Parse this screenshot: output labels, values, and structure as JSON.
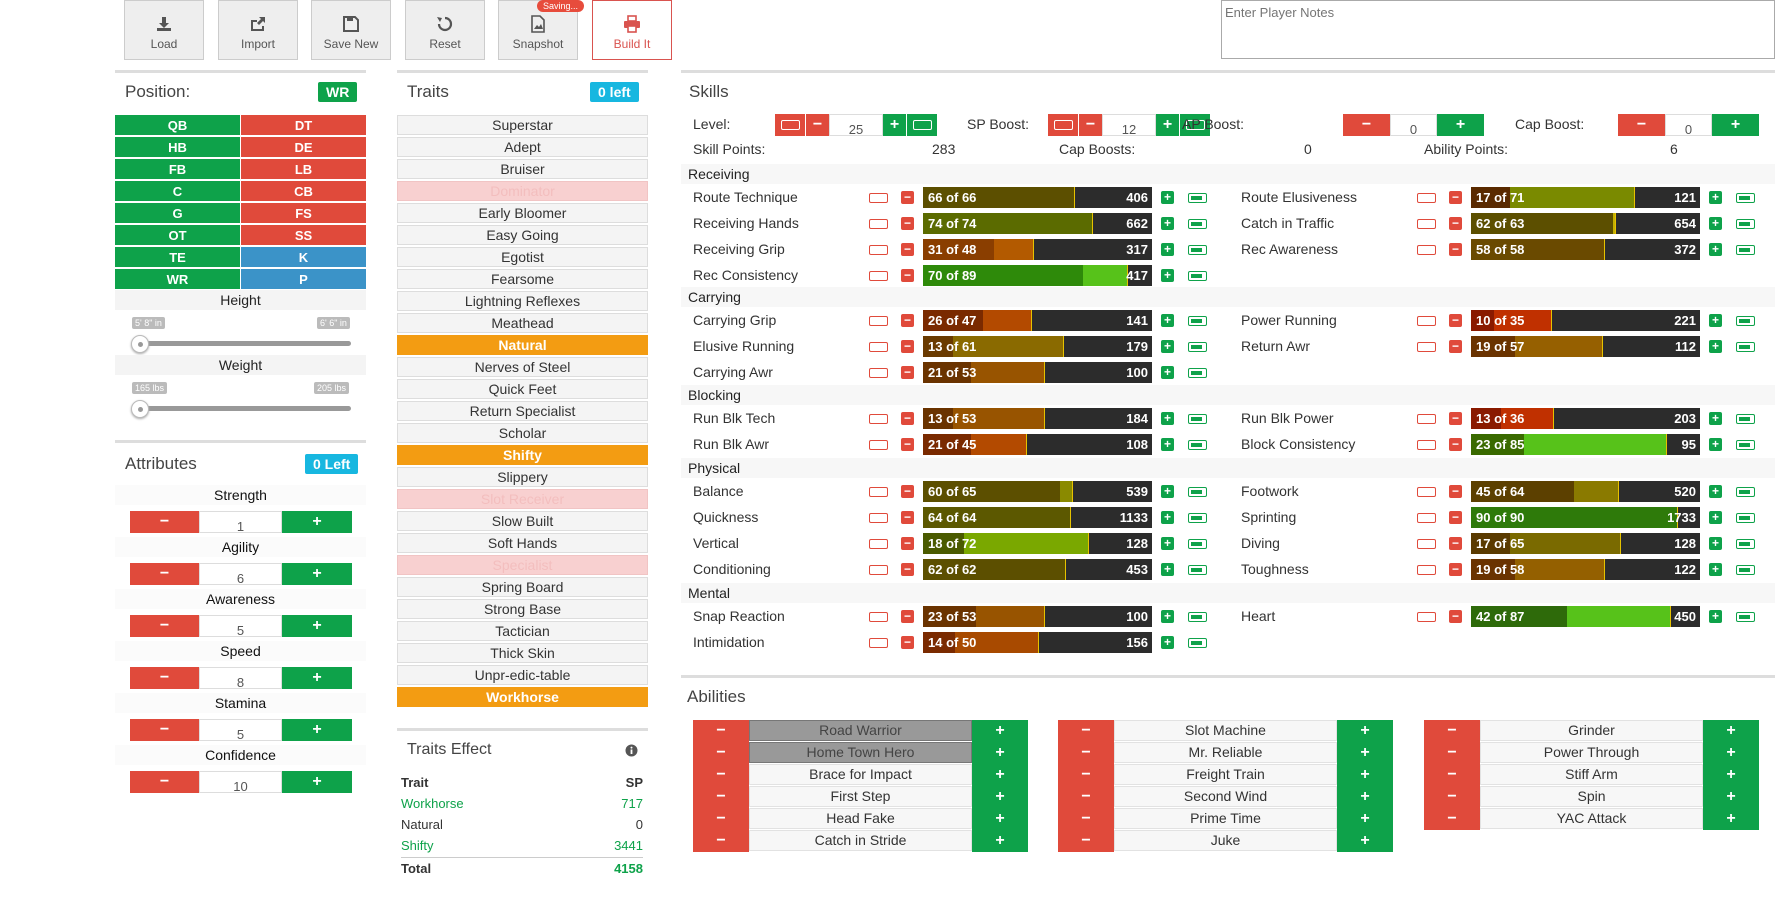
{
  "toolbar": {
    "load": "Load",
    "import": "Import",
    "save_new": "Save New",
    "reset": "Reset",
    "snapshot": "Snapshot",
    "saving_badge": "Saving...",
    "build": "Build It"
  },
  "notes": {
    "placeholder": "Enter Player Notes"
  },
  "position": {
    "title": "Position:",
    "selected": "WR",
    "left": [
      "QB",
      "HB",
      "FB",
      "C",
      "G",
      "OT",
      "TE",
      "WR"
    ],
    "right": [
      "DT",
      "DE",
      "LB",
      "CB",
      "FS",
      "SS",
      "K",
      "P"
    ]
  },
  "height": {
    "label": "Height",
    "min": "5' 8\" in",
    "max": "6' 6\" in",
    "value_fraction": 0
  },
  "weight": {
    "label": "Weight",
    "min": "165 lbs",
    "max": "205 lbs",
    "value_fraction": 0
  },
  "attributes": {
    "title": "Attributes",
    "left": "0 Left",
    "items": [
      {
        "name": "Strength",
        "value": "1"
      },
      {
        "name": "Agility",
        "value": "6"
      },
      {
        "name": "Awareness",
        "value": "5"
      },
      {
        "name": "Speed",
        "value": "8"
      },
      {
        "name": "Stamina",
        "value": "5"
      },
      {
        "name": "Confidence",
        "value": "10"
      }
    ]
  },
  "traits": {
    "title": "Traits",
    "left": "0 left",
    "items": [
      {
        "name": "Superstar",
        "state": ""
      },
      {
        "name": "Adept",
        "state": ""
      },
      {
        "name": "Bruiser",
        "state": ""
      },
      {
        "name": "Dominator",
        "state": "dis"
      },
      {
        "name": "Early Bloomer",
        "state": ""
      },
      {
        "name": "Easy Going",
        "state": ""
      },
      {
        "name": "Egotist",
        "state": ""
      },
      {
        "name": "Fearsome",
        "state": ""
      },
      {
        "name": "Lightning Reflexes",
        "state": ""
      },
      {
        "name": "Meathead",
        "state": ""
      },
      {
        "name": "Natural",
        "state": "on"
      },
      {
        "name": "Nerves of Steel",
        "state": ""
      },
      {
        "name": "Quick Feet",
        "state": ""
      },
      {
        "name": "Return Specialist",
        "state": ""
      },
      {
        "name": "Scholar",
        "state": ""
      },
      {
        "name": "Shifty",
        "state": "on"
      },
      {
        "name": "Slippery",
        "state": ""
      },
      {
        "name": "Slot Receiver",
        "state": "dis"
      },
      {
        "name": "Slow Built",
        "state": ""
      },
      {
        "name": "Soft Hands",
        "state": ""
      },
      {
        "name": "Specialist",
        "state": "dis"
      },
      {
        "name": "Spring Board",
        "state": ""
      },
      {
        "name": "Strong Base",
        "state": ""
      },
      {
        "name": "Tactician",
        "state": ""
      },
      {
        "name": "Thick Skin",
        "state": ""
      },
      {
        "name": "Unpr-edic-table",
        "state": ""
      },
      {
        "name": "Workhorse",
        "state": "on"
      }
    ]
  },
  "traits_effect": {
    "title": "Traits Effect",
    "col_trait": "Trait",
    "col_sp": "SP",
    "rows": [
      {
        "trait": "Workhorse",
        "sp": "717",
        "green": true
      },
      {
        "trait": "Natural",
        "sp": "0",
        "green": false
      },
      {
        "trait": "Shifty",
        "sp": "3441",
        "green": true
      }
    ],
    "total_label": "Total",
    "total": "4158"
  },
  "skills": {
    "title": "Skills",
    "level_label": "Level:",
    "level": "25",
    "sp_boost_label": "SP Boost:",
    "sp_boost": "12",
    "ap_boost_label": "AP Boost:",
    "ap_boost": "0",
    "cap_boost_label": "Cap Boost:",
    "cap_boost": "0",
    "skill_points_label": "Skill Points:",
    "skill_points": "283",
    "cap_boosts_label": "Cap Boosts:",
    "cap_boosts": "0",
    "ability_points_label": "Ability Points:",
    "ability_points": "6",
    "sections": [
      {
        "name": "Receiving",
        "left": [
          {
            "name": "Route Technique",
            "cur": 66,
            "cap": 66,
            "label": "66 of 66",
            "sp": "406",
            "color": "#5c4f00"
          },
          {
            "name": "Receiving Hands",
            "cur": 74,
            "cap": 74,
            "label": "74 of 74",
            "sp": "662",
            "color": "#5b6b00"
          },
          {
            "name": "Receiving Grip",
            "cur": 31,
            "cap": 48,
            "label": "31 of 48",
            "sp": "317",
            "color": "#8a3e00",
            "capcolor": "#b35a00"
          },
          {
            "name": "Rec Consistency",
            "cur": 70,
            "cap": 89,
            "label": "70 of 89",
            "sp": "417",
            "color": "#2e8a0a",
            "capcolor": "#57c21a"
          }
        ],
        "right": [
          {
            "name": "Route Elusiveness",
            "cur": 17,
            "cap": 71,
            "label": "17 of 71",
            "sp": "121",
            "color": "#5a2a00",
            "capcolor": "#7a8a00"
          },
          {
            "name": "Catch in Traffic",
            "cur": 62,
            "cap": 63,
            "label": "62 of 63",
            "sp": "654",
            "color": "#5c4f00",
            "capcolor": "#c5b000"
          },
          {
            "name": "Rec Awareness",
            "cur": 58,
            "cap": 58,
            "label": "58 of 58",
            "sp": "372",
            "color": "#6a4a00"
          }
        ]
      },
      {
        "name": "Carrying",
        "left": [
          {
            "name": "Carrying Grip",
            "cur": 26,
            "cap": 47,
            "label": "26 of 47",
            "sp": "141",
            "color": "#7a2a00",
            "capcolor": "#b34a00"
          },
          {
            "name": "Elusive Running",
            "cur": 13,
            "cap": 61,
            "label": "13 of 61",
            "sp": "179",
            "color": "#6a3a00",
            "capcolor": "#8a6a00"
          },
          {
            "name": "Carrying Awr",
            "cur": 21,
            "cap": 53,
            "label": "21 of 53",
            "sp": "100",
            "color": "#6a3300",
            "capcolor": "#985400"
          }
        ],
        "right": [
          {
            "name": "Power Running",
            "cur": 10,
            "cap": 35,
            "label": "10 of 35",
            "sp": "221",
            "color": "#8a1a00",
            "capcolor": "#c03000"
          },
          {
            "name": "Return Awr",
            "cur": 19,
            "cap": 57,
            "label": "19 of 57",
            "sp": "112",
            "color": "#6a3300",
            "capcolor": "#966000"
          }
        ]
      },
      {
        "name": "Blocking",
        "left": [
          {
            "name": "Run Blk Tech",
            "cur": 13,
            "cap": 53,
            "label": "13 of 53",
            "sp": "184",
            "color": "#6a3300",
            "capcolor": "#985400"
          },
          {
            "name": "Run Blk Awr",
            "cur": 21,
            "cap": 45,
            "label": "21 of 45",
            "sp": "108",
            "color": "#7a2a00",
            "capcolor": "#b34a00"
          }
        ],
        "right": [
          {
            "name": "Run Blk Power",
            "cur": 13,
            "cap": 36,
            "label": "13 of 36",
            "sp": "203",
            "color": "#8a1a00",
            "capcolor": "#c03000"
          },
          {
            "name": "Block Consistency",
            "cur": 23,
            "cap": 85,
            "label": "23 of 85",
            "sp": "95",
            "color": "#3a6a00",
            "capcolor": "#57c21a"
          }
        ]
      },
      {
        "name": "Physical",
        "left": [
          {
            "name": "Balance",
            "cur": 60,
            "cap": 65,
            "label": "60 of 65",
            "sp": "539",
            "color": "#5c4f00",
            "capcolor": "#8a8a00"
          },
          {
            "name": "Quickness",
            "cur": 64,
            "cap": 64,
            "label": "64 of 64",
            "sp": "1133",
            "color": "#5c5800"
          },
          {
            "name": "Vertical",
            "cur": 18,
            "cap": 72,
            "label": "18 of 72",
            "sp": "128",
            "color": "#4a5a00",
            "capcolor": "#7aa800"
          },
          {
            "name": "Conditioning",
            "cur": 62,
            "cap": 62,
            "label": "62 of 62",
            "sp": "453",
            "color": "#5c4f00"
          }
        ],
        "right": [
          {
            "name": "Footwork",
            "cur": 45,
            "cap": 64,
            "label": "45 of 64",
            "sp": "520",
            "color": "#5c4000",
            "capcolor": "#8a7a00"
          },
          {
            "name": "Sprinting",
            "cur": 90,
            "cap": 90,
            "label": "90 of 90",
            "sp": "1733",
            "color": "#2e7a0a",
            "capcolor": "#9aba00"
          },
          {
            "name": "Diving",
            "cur": 17,
            "cap": 65,
            "label": "17 of 65",
            "sp": "128",
            "color": "#5a3a00",
            "capcolor": "#7a6a00"
          },
          {
            "name": "Toughness",
            "cur": 19,
            "cap": 58,
            "label": "19 of 58",
            "sp": "122",
            "color": "#6a3300",
            "capcolor": "#946000"
          }
        ]
      },
      {
        "name": "Mental",
        "left": [
          {
            "name": "Snap Reaction",
            "cur": 23,
            "cap": 53,
            "label": "23 of 53",
            "sp": "100",
            "color": "#6a3300",
            "capcolor": "#985400"
          },
          {
            "name": "Intimidation",
            "cur": 14,
            "cap": 50,
            "label": "14 of 50",
            "sp": "156",
            "color": "#7a2a00",
            "capcolor": "#a84a00"
          }
        ],
        "right": [
          {
            "name": "Heart",
            "cur": 42,
            "cap": 87,
            "label": "42 of 87",
            "sp": "450",
            "color": "#2e6a0a",
            "capcolor": "#57c21a"
          }
        ]
      }
    ]
  },
  "abilities": {
    "title": "Abilities",
    "cols": [
      [
        {
          "name": "Road Warrior",
          "on": true
        },
        {
          "name": "Home Town Hero",
          "on": true
        },
        {
          "name": "Brace for Impact",
          "on": false
        },
        {
          "name": "First Step",
          "on": false
        },
        {
          "name": "Head Fake",
          "on": false
        },
        {
          "name": "Catch in Stride",
          "on": false
        }
      ],
      [
        {
          "name": "Slot Machine",
          "on": false
        },
        {
          "name": "Mr. Reliable",
          "on": false
        },
        {
          "name": "Freight Train",
          "on": false
        },
        {
          "name": "Second Wind",
          "on": false
        },
        {
          "name": "Prime Time",
          "on": false
        },
        {
          "name": "Juke",
          "on": false
        }
      ],
      [
        {
          "name": "Grinder",
          "on": false
        },
        {
          "name": "Power Through",
          "on": false
        },
        {
          "name": "Stiff Arm",
          "on": false
        },
        {
          "name": "Spin",
          "on": false
        },
        {
          "name": "YAC Attack",
          "on": false
        }
      ]
    ]
  },
  "colors": {
    "green": "#0ea24a",
    "red": "#e04a3b",
    "orange": "#f39c12",
    "cyan": "#17b7e0"
  }
}
